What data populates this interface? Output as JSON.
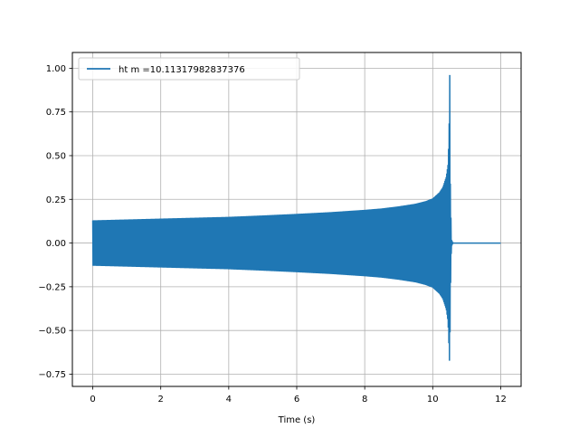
{
  "chart_data": {
    "type": "line",
    "title": "",
    "xlabel": "Time (s)",
    "ylabel": "",
    "xlim": [
      -0.6,
      12.6
    ],
    "ylim": [
      -0.82,
      1.09
    ],
    "grid": true,
    "legend_position": "top-left",
    "series": [
      {
        "name": "ht m =10.11317982837376",
        "color": "#1f77b4",
        "envelope": {
          "t": [
            0,
            1,
            2,
            3,
            4,
            5,
            6,
            7,
            8,
            8.5,
            9,
            9.5,
            9.8,
            10,
            10.2,
            10.3,
            10.4,
            10.45,
            10.48,
            10.5,
            10.52,
            10.55,
            10.6,
            12
          ],
          "upper": [
            0.13,
            0.135,
            0.14,
            0.145,
            0.15,
            0.158,
            0.167,
            0.177,
            0.19,
            0.198,
            0.21,
            0.225,
            0.24,
            0.255,
            0.29,
            0.32,
            0.38,
            0.45,
            0.62,
            1.0,
            0.3,
            0.02,
            0.0,
            0.0
          ],
          "lower": [
            -0.13,
            -0.135,
            -0.14,
            -0.145,
            -0.15,
            -0.158,
            -0.167,
            -0.177,
            -0.19,
            -0.198,
            -0.21,
            -0.225,
            -0.24,
            -0.255,
            -0.29,
            -0.32,
            -0.38,
            -0.45,
            -0.6,
            -0.72,
            -0.3,
            -0.02,
            0.0,
            0.0
          ]
        }
      }
    ],
    "x_ticks": [
      {
        "value": 0,
        "label": "0"
      },
      {
        "value": 2,
        "label": "2"
      },
      {
        "value": 4,
        "label": "4"
      },
      {
        "value": 6,
        "label": "6"
      },
      {
        "value": 8,
        "label": "8"
      },
      {
        "value": 10,
        "label": "10"
      },
      {
        "value": 12,
        "label": "12"
      }
    ],
    "y_ticks": [
      {
        "value": -0.75,
        "label": "−0.75"
      },
      {
        "value": -0.5,
        "label": "−0.50"
      },
      {
        "value": -0.25,
        "label": "−0.25"
      },
      {
        "value": 0.0,
        "label": "0.00"
      },
      {
        "value": 0.25,
        "label": "0.25"
      },
      {
        "value": 0.5,
        "label": "0.50"
      },
      {
        "value": 0.75,
        "label": "0.75"
      },
      {
        "value": 1.0,
        "label": "1.00"
      }
    ]
  }
}
